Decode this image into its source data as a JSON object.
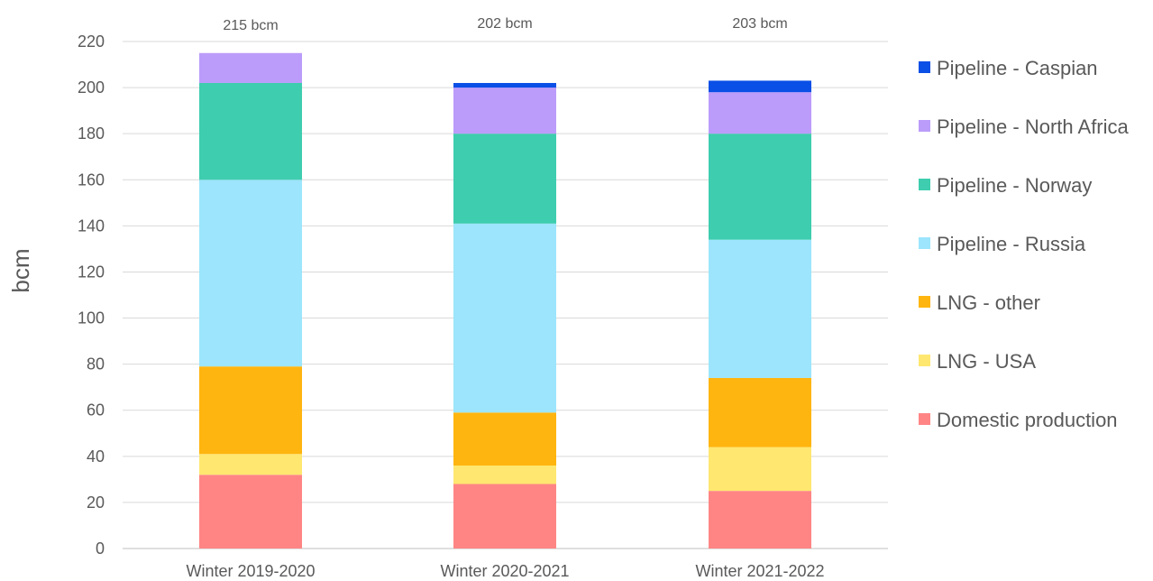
{
  "chart_data": {
    "type": "bar",
    "stacked": true,
    "categories": [
      "Winter 2019-2020",
      "Winter 2020-2021",
      "Winter 2021-2022"
    ],
    "totals": [
      "215 bcm",
      "202 bcm",
      "203 bcm"
    ],
    "ylabel": "bcm",
    "xlabel": "",
    "ylim": [
      0,
      220
    ],
    "yticks": [
      0,
      20,
      40,
      60,
      80,
      100,
      120,
      140,
      160,
      180,
      200,
      220
    ],
    "grid": true,
    "legend_position": "right",
    "series": [
      {
        "name": "Domestic production",
        "color": "#FF8585",
        "values": [
          32,
          28,
          25
        ]
      },
      {
        "name": "LNG - USA",
        "color": "#FFE770",
        "values": [
          9,
          8,
          19
        ]
      },
      {
        "name": "LNG - other",
        "color": "#FFB50F",
        "values": [
          38,
          23,
          30
        ]
      },
      {
        "name": "Pipeline - Russia",
        "color": "#9CE5FC",
        "values": [
          81,
          82,
          60
        ]
      },
      {
        "name": "Pipeline - Norway",
        "color": "#3ECDAE",
        "values": [
          42,
          39,
          46
        ]
      },
      {
        "name": "Pipeline - North Africa",
        "color": "#BB9CFA",
        "values": [
          13,
          20,
          18
        ]
      },
      {
        "name": "Pipeline - Caspian",
        "color": "#0A4FE6",
        "values": [
          0,
          2,
          5
        ]
      }
    ]
  }
}
